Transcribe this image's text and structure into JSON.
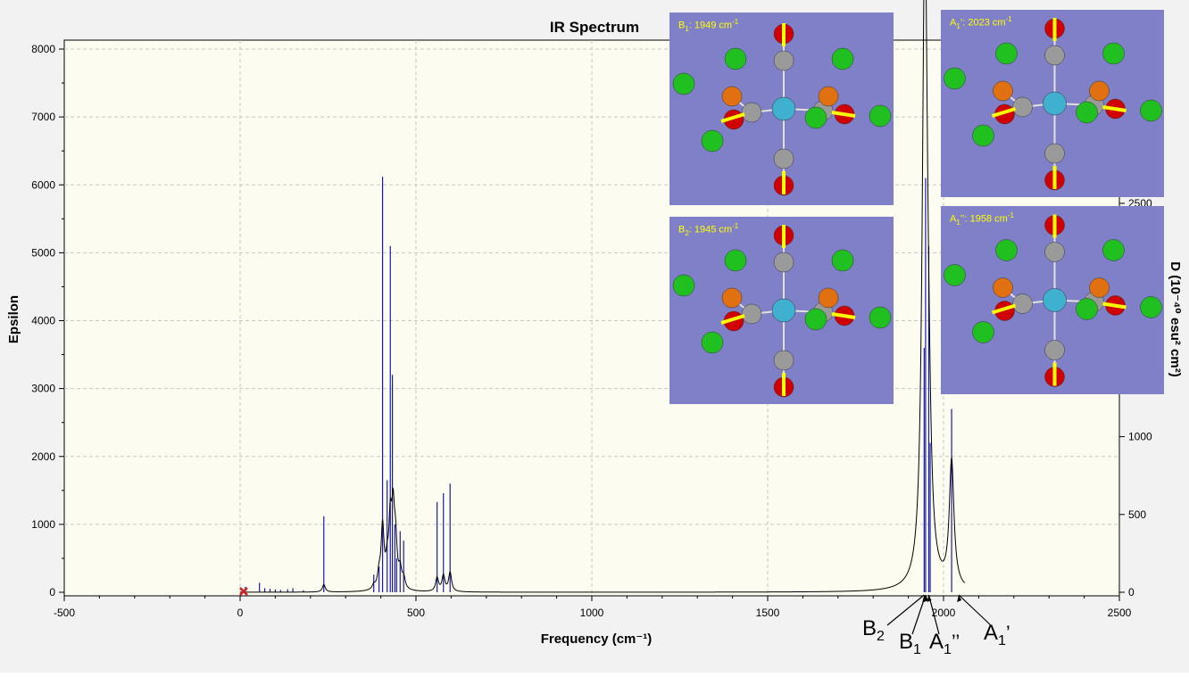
{
  "window": {
    "title": "IR Spectrum"
  },
  "colors": {
    "plot_bg": "#fcfcf0",
    "frame_bg": "#f2f2f2",
    "stick": "#1a1aa8",
    "curve": "#000000",
    "inset_bg": "#8080c8",
    "arrow": "#ffff00"
  },
  "chart_data": {
    "type": "line",
    "title": "IR Spectrum",
    "xlabel": "Frequency (cm⁻¹)",
    "ylabel": "Epsilon",
    "y2label": "D (10⁻⁴⁰ esu² cm²)",
    "xlim": [
      -500,
      2500
    ],
    "ylim": [
      0,
      8000
    ],
    "y2lim": [
      0,
      2500
    ],
    "xticks": [
      -500,
      0,
      500,
      1000,
      1500,
      2000,
      2500
    ],
    "yticks": [
      0,
      1000,
      2000,
      3000,
      4000,
      5000,
      6000,
      7000,
      8000
    ],
    "y2ticks": [
      0,
      500,
      1000,
      2500
    ],
    "grid": true,
    "series": [
      {
        "style": "spectrum-curve",
        "peaks": [
          {
            "x": 238,
            "h": 110,
            "w": 5
          },
          {
            "x": 380,
            "h": 60,
            "w": 5
          },
          {
            "x": 395,
            "h": 200,
            "w": 5
          },
          {
            "x": 405,
            "h": 900,
            "w": 5
          },
          {
            "x": 418,
            "h": 300,
            "w": 5
          },
          {
            "x": 427,
            "h": 900,
            "w": 5
          },
          {
            "x": 435,
            "h": 1000,
            "w": 5
          },
          {
            "x": 442,
            "h": 600,
            "w": 5
          },
          {
            "x": 455,
            "h": 250,
            "w": 5
          },
          {
            "x": 465,
            "h": 150,
            "w": 5
          },
          {
            "x": 560,
            "h": 200,
            "w": 5
          },
          {
            "x": 578,
            "h": 230,
            "w": 5
          },
          {
            "x": 597,
            "h": 280,
            "w": 5
          },
          {
            "x": 1945,
            "h": 5000,
            "w": 8
          },
          {
            "x": 1949,
            "h": 5000,
            "w": 8
          },
          {
            "x": 1958,
            "h": 1200,
            "w": 8
          },
          {
            "x": 2023,
            "h": 1850,
            "w": 8
          }
        ]
      },
      {
        "style": "sticks",
        "x": [
          15,
          55,
          70,
          85,
          100,
          115,
          135,
          150,
          180,
          238,
          380,
          395,
          405,
          418,
          427,
          433,
          440,
          445,
          455,
          465,
          560,
          578,
          597,
          1945,
          1949,
          1958,
          1962,
          2023
        ],
        "y": [
          80,
          140,
          60,
          50,
          40,
          35,
          45,
          60,
          30,
          1120,
          260,
          380,
          6120,
          1650,
          5100,
          3200,
          1000,
          500,
          900,
          760,
          1330,
          1460,
          1600,
          3600,
          6100,
          5100,
          2200,
          2700
        ]
      }
    ],
    "markers": [
      {
        "x": 10,
        "y": 0,
        "symbol": "x"
      }
    ],
    "insets": [
      {
        "label": "B",
        "sub": "1",
        "freq": "1949 cm",
        "unit_sup": "-1"
      },
      {
        "label": "A",
        "sub": "1",
        "prime": "’",
        "freq": "2023 cm",
        "unit_sup": "-1"
      },
      {
        "label": "B",
        "sub": "2",
        "freq": "1945 cm",
        "unit_sup": "-1"
      },
      {
        "label": "A",
        "sub": "1",
        "prime": "’’",
        "freq": "1958 cm",
        "unit_sup": "-1"
      }
    ],
    "annotations": [
      {
        "text": "B",
        "sub": "2",
        "x": 1945
      },
      {
        "text": "B",
        "sub": "1",
        "x": 1949
      },
      {
        "text": "A",
        "sub": "1",
        "prime": "’’",
        "x": 1958
      },
      {
        "text": "A",
        "sub": "1",
        "prime": "’",
        "x": 2023
      }
    ]
  }
}
